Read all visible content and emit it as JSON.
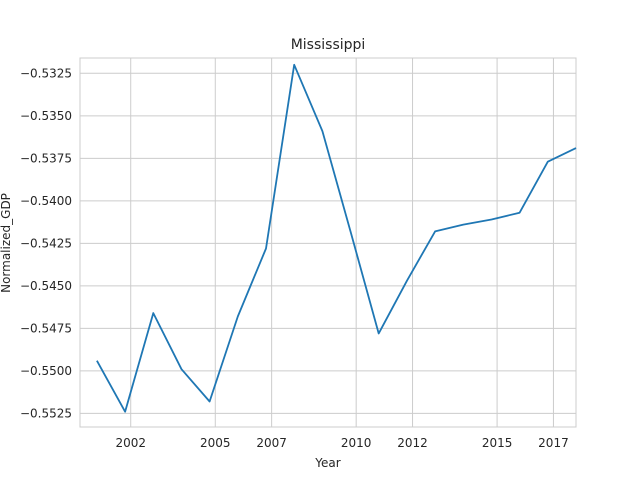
{
  "chart_data": {
    "type": "line",
    "title": "Mississippi",
    "xlabel": "Year",
    "ylabel": "Normalized_GDP",
    "xlim": [
      2000.2,
      2017.8
    ],
    "ylim": [
      -0.5533,
      -0.5316
    ],
    "x_ticks": [
      2002,
      2005,
      2007,
      2010,
      2012,
      2015,
      2017
    ],
    "x_tick_labels": [
      "2002",
      "2005",
      "2007",
      "2010",
      "2012",
      "2015",
      "2017"
    ],
    "y_ticks": [
      -0.5325,
      -0.535,
      -0.5375,
      -0.54,
      -0.5425,
      -0.545,
      -0.5475,
      -0.55,
      -0.5525
    ],
    "y_tick_labels": [
      "−0.5325",
      "−0.5350",
      "−0.5375",
      "−0.5400",
      "−0.5425",
      "−0.5450",
      "−0.5475",
      "−0.5500",
      "−0.5525"
    ],
    "grid": true,
    "series": [
      {
        "color": "#1f77b4",
        "x": [
          2000.8,
          2001.8,
          2002.8,
          2003.8,
          2004.8,
          2005.8,
          2006.8,
          2007.8,
          2008.8,
          2009.8,
          2010.8,
          2011.8,
          2012.8,
          2013.8,
          2014.8,
          2015.8,
          2016.8,
          2017.8
        ],
        "values": [
          -0.5494,
          -0.5524,
          -0.5466,
          -0.5499,
          -0.5518,
          -0.5468,
          -0.5428,
          -0.532,
          -0.5359,
          -0.5418,
          -0.5478,
          -0.5447,
          -0.5418,
          -0.5414,
          -0.5411,
          -0.5407,
          -0.5377,
          -0.5369
        ]
      }
    ]
  }
}
